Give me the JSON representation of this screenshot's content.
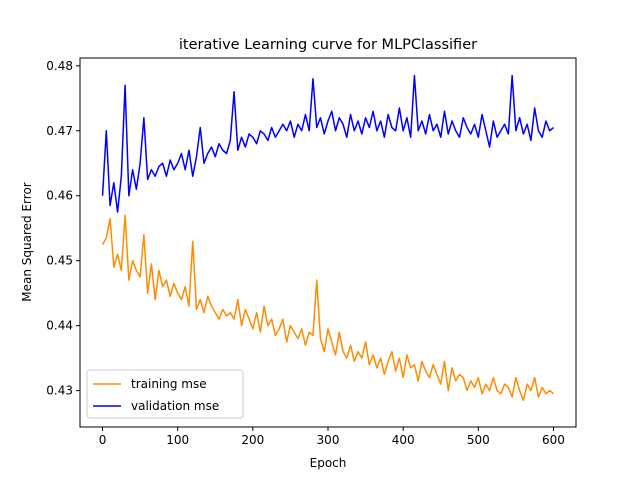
{
  "chart_data": {
    "type": "line",
    "title": "iterative Learning curve for MLPClassifier",
    "xlabel": "Epoch",
    "ylabel": "Mean Squared Error",
    "xlim": [
      -30,
      630
    ],
    "ylim": [
      0.4244,
      0.4812
    ],
    "xticks": [
      0,
      100,
      200,
      300,
      400,
      500,
      600
    ],
    "xtick_labels": [
      "0",
      "100",
      "200",
      "300",
      "400",
      "500",
      "600"
    ],
    "yticks": [
      0.43,
      0.44,
      0.45,
      0.46,
      0.47,
      0.48
    ],
    "ytick_labels": [
      "0.43",
      "0.44",
      "0.45",
      "0.46",
      "0.47",
      "0.48"
    ],
    "grid": false,
    "legend_position": "lower-left",
    "series": [
      {
        "name": "training mse",
        "color": "#ff8c00",
        "x": [
          0,
          5,
          10,
          15,
          20,
          25,
          30,
          35,
          40,
          45,
          50,
          55,
          60,
          65,
          70,
          75,
          80,
          85,
          90,
          95,
          100,
          105,
          110,
          115,
          120,
          125,
          130,
          135,
          140,
          145,
          150,
          155,
          160,
          165,
          170,
          175,
          180,
          185,
          190,
          195,
          200,
          205,
          210,
          215,
          220,
          225,
          230,
          235,
          240,
          245,
          250,
          255,
          260,
          265,
          270,
          275,
          280,
          285,
          290,
          295,
          300,
          305,
          310,
          315,
          320,
          325,
          330,
          335,
          340,
          345,
          350,
          355,
          360,
          365,
          370,
          375,
          380,
          385,
          390,
          395,
          400,
          405,
          410,
          415,
          420,
          425,
          430,
          435,
          440,
          445,
          450,
          455,
          460,
          465,
          470,
          475,
          480,
          485,
          490,
          495,
          500,
          505,
          510,
          515,
          520,
          525,
          530,
          535,
          540,
          545,
          550,
          555,
          560,
          565,
          570,
          575,
          580,
          585,
          590,
          595,
          600
        ],
        "y": [
          0.4525,
          0.4535,
          0.4565,
          0.449,
          0.451,
          0.4485,
          0.457,
          0.447,
          0.45,
          0.4485,
          0.4475,
          0.454,
          0.445,
          0.4495,
          0.444,
          0.4485,
          0.446,
          0.447,
          0.4445,
          0.4465,
          0.445,
          0.444,
          0.446,
          0.443,
          0.453,
          0.4425,
          0.444,
          0.442,
          0.4445,
          0.443,
          0.442,
          0.441,
          0.4425,
          0.4415,
          0.442,
          0.441,
          0.444,
          0.44,
          0.4425,
          0.441,
          0.4395,
          0.442,
          0.439,
          0.443,
          0.44,
          0.441,
          0.4385,
          0.4395,
          0.441,
          0.4375,
          0.44,
          0.439,
          0.438,
          0.4395,
          0.437,
          0.439,
          0.4385,
          0.447,
          0.438,
          0.436,
          0.4395,
          0.4375,
          0.4355,
          0.439,
          0.436,
          0.435,
          0.437,
          0.4345,
          0.436,
          0.435,
          0.4375,
          0.434,
          0.4355,
          0.4335,
          0.435,
          0.4325,
          0.4345,
          0.436,
          0.433,
          0.435,
          0.432,
          0.4355,
          0.4335,
          0.434,
          0.4315,
          0.4345,
          0.433,
          0.432,
          0.434,
          0.4325,
          0.431,
          0.4345,
          0.43,
          0.4335,
          0.4315,
          0.4325,
          0.432,
          0.43,
          0.4315,
          0.4305,
          0.432,
          0.4295,
          0.431,
          0.43,
          0.432,
          0.43,
          0.4295,
          0.431,
          0.4305,
          0.429,
          0.432,
          0.43,
          0.4285,
          0.431,
          0.43,
          0.432,
          0.429,
          0.4305,
          0.4295,
          0.43,
          0.4295
        ]
      },
      {
        "name": "validation mse",
        "color": "#0000ff",
        "x": [
          0,
          5,
          10,
          15,
          20,
          25,
          30,
          35,
          40,
          45,
          50,
          55,
          60,
          65,
          70,
          75,
          80,
          85,
          90,
          95,
          100,
          105,
          110,
          115,
          120,
          125,
          130,
          135,
          140,
          145,
          150,
          155,
          160,
          165,
          170,
          175,
          180,
          185,
          190,
          195,
          200,
          205,
          210,
          215,
          220,
          225,
          230,
          235,
          240,
          245,
          250,
          255,
          260,
          265,
          270,
          275,
          280,
          285,
          290,
          295,
          300,
          305,
          310,
          315,
          320,
          325,
          330,
          335,
          340,
          345,
          350,
          355,
          360,
          365,
          370,
          375,
          380,
          385,
          390,
          395,
          400,
          405,
          410,
          415,
          420,
          425,
          430,
          435,
          440,
          445,
          450,
          455,
          460,
          465,
          470,
          475,
          480,
          485,
          490,
          495,
          500,
          505,
          510,
          515,
          520,
          525,
          530,
          535,
          540,
          545,
          550,
          555,
          560,
          565,
          570,
          575,
          580,
          585,
          590,
          595,
          600
        ],
        "y": [
          0.46,
          0.47,
          0.4585,
          0.462,
          0.4575,
          0.463,
          0.477,
          0.46,
          0.464,
          0.461,
          0.465,
          0.472,
          0.4625,
          0.464,
          0.463,
          0.4645,
          0.465,
          0.463,
          0.4655,
          0.464,
          0.465,
          0.4665,
          0.464,
          0.467,
          0.463,
          0.466,
          0.4705,
          0.465,
          0.4665,
          0.4675,
          0.466,
          0.468,
          0.467,
          0.4665,
          0.4685,
          0.476,
          0.467,
          0.469,
          0.4675,
          0.4695,
          0.469,
          0.468,
          0.47,
          0.4695,
          0.4685,
          0.4705,
          0.469,
          0.47,
          0.471,
          0.47,
          0.4715,
          0.469,
          0.471,
          0.47,
          0.4725,
          0.47,
          0.478,
          0.4705,
          0.472,
          0.4695,
          0.4715,
          0.473,
          0.47,
          0.472,
          0.471,
          0.469,
          0.4725,
          0.47,
          0.4715,
          0.4695,
          0.472,
          0.4705,
          0.473,
          0.47,
          0.4715,
          0.469,
          0.4725,
          0.4705,
          0.47,
          0.4735,
          0.47,
          0.472,
          0.469,
          0.4785,
          0.47,
          0.4715,
          0.4695,
          0.4725,
          0.47,
          0.471,
          0.469,
          0.473,
          0.4695,
          0.4715,
          0.47,
          0.469,
          0.472,
          0.4705,
          0.4695,
          0.471,
          0.469,
          0.4725,
          0.47,
          0.4675,
          0.4715,
          0.469,
          0.47,
          0.471,
          0.4695,
          0.4785,
          0.47,
          0.472,
          0.4695,
          0.471,
          0.4685,
          0.4735,
          0.47,
          0.469,
          0.4715,
          0.47,
          0.4705
        ]
      }
    ]
  }
}
